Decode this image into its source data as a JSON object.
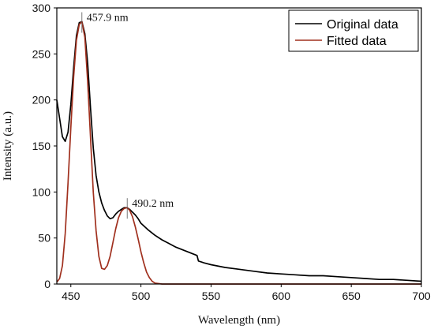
{
  "chart_data": {
    "type": "line",
    "xlabel": "Wavelength (nm)",
    "ylabel": "Intensity (a.u.)",
    "xlim": [
      440,
      700
    ],
    "ylim": [
      0,
      300
    ],
    "x_ticks": [
      450,
      500,
      550,
      600,
      650,
      700
    ],
    "y_ticks": [
      0,
      50,
      100,
      150,
      200,
      250,
      300
    ],
    "grid": false,
    "legend_position": "top-right",
    "colors": {
      "original": "#000000",
      "fitted": "#a0301e"
    },
    "series": [
      {
        "name": "Original data",
        "x": [
          440,
          442,
          444,
          446,
          448,
          450,
          452,
          454,
          456,
          457.9,
          460,
          462,
          464,
          466,
          468,
          470,
          472,
          474,
          476,
          478,
          480,
          482,
          484,
          486,
          488,
          490.2,
          492,
          494,
          496,
          498,
          500,
          505,
          510,
          515,
          520,
          525,
          530,
          535,
          540,
          541,
          545,
          550,
          560,
          570,
          580,
          590,
          600,
          610,
          620,
          630,
          640,
          650,
          660,
          670,
          680,
          690,
          700
        ],
        "y": [
          200,
          180,
          160,
          155,
          165,
          195,
          235,
          270,
          284,
          285,
          272,
          240,
          192,
          148,
          118,
          100,
          88,
          80,
          74,
          71,
          72,
          76,
          79,
          81,
          83,
          83,
          81,
          78,
          75,
          71,
          66,
          59,
          53,
          48,
          44,
          40,
          37,
          34,
          31,
          25,
          23,
          21,
          18,
          16,
          14,
          12,
          11,
          10,
          9,
          9,
          8,
          7,
          6,
          5,
          5,
          4,
          3
        ]
      },
      {
        "name": "Fitted data",
        "x": [
          440,
          442,
          444,
          446,
          448,
          450,
          452,
          454,
          456,
          457.9,
          460,
          462,
          464,
          466,
          468,
          470,
          472,
          474,
          476,
          478,
          480,
          482,
          484,
          486,
          488,
          490.2,
          492,
          494,
          496,
          498,
          500,
          502,
          504,
          506,
          508,
          510,
          515,
          520,
          530,
          550,
          600,
          650,
          700
        ],
        "y": [
          2,
          6,
          20,
          55,
          110,
          170,
          225,
          265,
          282,
          285,
          268,
          220,
          160,
          100,
          58,
          30,
          17,
          16,
          20,
          30,
          45,
          60,
          72,
          79,
          82,
          83,
          80,
          73,
          62,
          49,
          35,
          23,
          13,
          7,
          3,
          1,
          0,
          0,
          0,
          0,
          0,
          0,
          0
        ]
      }
    ],
    "annotations": [
      {
        "text": "457.9 nm",
        "x": 457.9,
        "y": 285
      },
      {
        "text": "490.2 nm",
        "x": 490.2,
        "y": 83
      }
    ]
  }
}
